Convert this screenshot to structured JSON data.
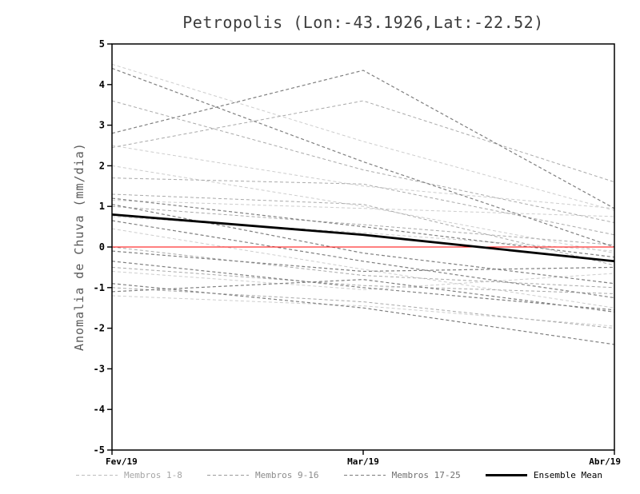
{
  "title": "Petropolis (Lon:-43.1926,Lat:-22.52)",
  "chart_data": {
    "type": "line",
    "categories": [
      "Fev/19",
      "Mar/19",
      "Abr/19"
    ],
    "xlabel": "",
    "ylabel": "Anomalia de Chuva (mm/dia)",
    "ylim": [
      -5,
      5
    ],
    "ytick_step": 1,
    "grid": false,
    "legend_position": "bottom",
    "zero_line": {
      "y": 0,
      "color": "#ff0000"
    },
    "groups": [
      {
        "name": "Membros 1-8",
        "color": "#cdcdcd",
        "width": 1,
        "series": [
          [
            4.5,
            2.6,
            0.9
          ],
          [
            2.5,
            1.5,
            0.95
          ],
          [
            2.0,
            1.0,
            -0.15
          ],
          [
            1.15,
            0.95,
            0.75
          ],
          [
            0.75,
            0.35,
            -0.1
          ],
          [
            0.45,
            -0.55,
            -1.5
          ],
          [
            -0.6,
            -1.05,
            -0.65
          ],
          [
            -1.2,
            -1.45,
            -1.95
          ]
        ]
      },
      {
        "name": "Membros 9-16",
        "color": "#a9a9a9",
        "width": 1,
        "series": [
          [
            3.6,
            1.9,
            0.6
          ],
          [
            2.45,
            3.6,
            1.6
          ],
          [
            1.7,
            1.55,
            0.3
          ],
          [
            1.3,
            1.05,
            -0.45
          ],
          [
            1.0,
            0.55,
            0.05
          ],
          [
            0.0,
            -0.7,
            -1.0
          ],
          [
            -0.5,
            -0.95,
            -1.15
          ],
          [
            -1.0,
            -1.35,
            -2.0
          ]
        ]
      },
      {
        "name": "Membros 17-25",
        "color": "#7f7f7f",
        "width": 1.2,
        "series": [
          [
            4.4,
            2.1,
            0.0
          ],
          [
            2.8,
            4.35,
            0.95
          ],
          [
            1.2,
            0.5,
            -0.25
          ],
          [
            1.05,
            -0.15,
            -0.9
          ],
          [
            0.65,
            -0.35,
            -1.25
          ],
          [
            -0.1,
            -0.6,
            -0.5
          ],
          [
            -0.35,
            -1.0,
            -1.55
          ],
          [
            -0.9,
            -1.5,
            -2.4
          ],
          [
            -1.1,
            -0.8,
            -1.6
          ]
        ]
      }
    ],
    "mean": {
      "name": "Ensemble Mean",
      "color": "#000000",
      "width": 2.8,
      "values": [
        0.8,
        0.3,
        -0.35
      ]
    }
  },
  "legend": {
    "items": [
      {
        "label": "Membros 1-8",
        "color": "#bdbdbd",
        "text_color": "#a6a6a6",
        "style": "dashed"
      },
      {
        "label": "Membros 9-16",
        "color": "#9b9b9b",
        "text_color": "#8c8c8c",
        "style": "dashed"
      },
      {
        "label": "Membros 17-25",
        "color": "#7b7b7b",
        "text_color": "#6f6f6f",
        "style": "dashed"
      },
      {
        "label": "Ensemble Mean",
        "color": "#000000",
        "text_color": "#000000",
        "style": "solid"
      }
    ]
  }
}
